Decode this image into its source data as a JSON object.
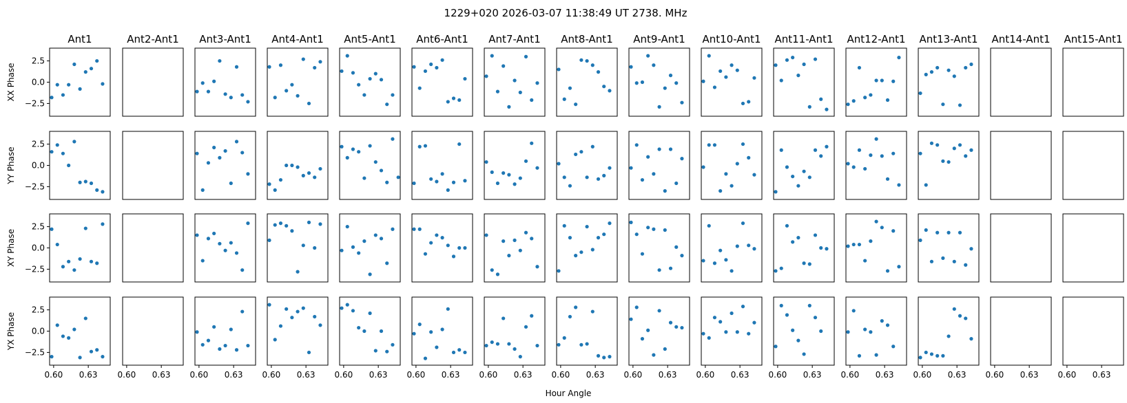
{
  "chart_data": {
    "type": "scatter",
    "title": "1229+020  2026-03-07 11:38:49 UT  2738. MHz",
    "xlabel": "Hour Angle",
    "columns": [
      "Ant1",
      "Ant2-Ant1",
      "Ant3-Ant1",
      "Ant4-Ant1",
      "Ant5-Ant1",
      "Ant6-Ant1",
      "Ant7-Ant1",
      "Ant8-Ant1",
      "Ant9-Ant1",
      "Ant10-Ant1",
      "Ant11-Ant1",
      "Ant12-Ant1",
      "Ant13-Ant1",
      "Ant14-Ant1",
      "Ant15-Ant1"
    ],
    "rows": [
      "XX Phase",
      "YY Phase",
      "XY Phase",
      "YX Phase"
    ],
    "x": [
      0.5983,
      0.6032,
      0.6081,
      0.613,
      0.6179,
      0.6228,
      0.6277,
      0.6326,
      0.6375,
      0.6424,
      0.6473
    ],
    "xlim": [
      0.5965,
      0.649
    ],
    "ylim": [
      -4.0,
      4.0
    ],
    "xticks": [
      0.6,
      0.63
    ],
    "xtick_labels": [
      "0.60",
      "0.63"
    ],
    "yticks": [
      2.5,
      0.0,
      -2.5
    ],
    "ytick_labels": [
      "2.5",
      "0.0",
      "−2.5"
    ],
    "marker_color": "#1f77b4",
    "grid": false,
    "panels": [
      [
        [
          -1.8,
          -0.3,
          -1.5,
          -0.3,
          2.1,
          -0.8,
          1.2,
          1.6,
          2.5,
          -0.2
        ],
        [],
        [
          -1.1,
          -0.1,
          -1.1,
          0.1,
          2.5,
          -1.4,
          -1.8,
          1.8,
          -1.5,
          -2.3
        ],
        [
          1.8,
          -1.8,
          2.0,
          -1.0,
          -0.3,
          -1.6,
          2.7,
          -2.5,
          1.7,
          2.4
        ],
        [
          1.3,
          3.1,
          1.1,
          -0.3,
          -1.5,
          0.4,
          1.0,
          0.3,
          -2.6,
          -1.5
        ],
        [
          1.8,
          -0.7,
          1.3,
          2.1,
          1.7,
          2.6,
          -2.3,
          -1.9,
          -2.1,
          0.4
        ],
        [
          0.7,
          3.1,
          -1.1,
          1.9,
          -2.9,
          0.2,
          -1.2,
          3.0,
          -2.1,
          -0.1
        ],
        [
          1.5,
          -2.0,
          -0.7,
          -2.6,
          2.6,
          2.5,
          2.0,
          1.2,
          -0.5,
          -1.0
        ],
        [
          1.8,
          -0.1,
          0.0,
          3.1,
          2.0,
          -2.9,
          -0.7,
          0.8,
          -0.1,
          -2.4
        ],
        [
          0.1,
          3.1,
          -0.6,
          1.3,
          0.6,
          2.0,
          1.4,
          -2.5,
          -2.3,
          0.5
        ],
        [
          2.0,
          0.2,
          2.6,
          2.9,
          0.8,
          2.1,
          -2.9,
          2.7,
          -2.0,
          -3.2
        ],
        [
          -2.6,
          -2.2,
          1.7,
          -1.8,
          -1.5,
          0.2,
          0.2,
          -2.1,
          0.1,
          2.9
        ],
        [
          -1.3,
          0.9,
          1.2,
          1.7,
          -2.6,
          1.4,
          0.7,
          -2.7,
          1.7,
          2.1
        ],
        [],
        []
      ],
      [
        [
          1.6,
          2.4,
          1.4,
          0.0,
          2.8,
          -2.0,
          -1.9,
          -2.1,
          -2.9,
          -3.1
        ],
        [],
        [
          1.4,
          -2.9,
          0.3,
          2.1,
          0.9,
          1.7,
          -2.1,
          2.8,
          1.5,
          -1.0
        ],
        [
          -2.2,
          -2.9,
          -1.7,
          0.0,
          0.0,
          -0.2,
          -1.2,
          -0.9,
          -1.4,
          -0.4
        ],
        [
          2.2,
          0.9,
          1.9,
          1.6,
          -1.5,
          2.3,
          0.4,
          -0.6,
          -2.0,
          3.1,
          -1.4
        ],
        [
          -2.1,
          2.2,
          2.3,
          -1.6,
          -1.9,
          -1.0,
          -2.9,
          -2.0,
          2.5,
          -1.8
        ],
        [
          0.4,
          -0.8,
          -2.1,
          -0.9,
          -1.1,
          -2.2,
          -1.5,
          0.5,
          2.6,
          -0.3
        ],
        [
          0.2,
          -1.4,
          -2.4,
          1.3,
          1.6,
          -1.4,
          2.2,
          -1.6,
          -1.2,
          -0.3
        ],
        [
          -0.3,
          2.4,
          -1.7,
          1.0,
          -1.0,
          1.9,
          -3.0,
          1.9,
          -2.1,
          0.8
        ],
        [
          -0.2,
          2.4,
          2.4,
          -3.0,
          -1.0,
          -2.4,
          0.2,
          2.5,
          0.9,
          -1.1
        ],
        [
          -3.1,
          1.8,
          -0.2,
          -1.3,
          -2.4,
          -0.7,
          -1.4,
          1.8,
          1.1,
          2.2
        ],
        [
          0.2,
          -0.2,
          1.8,
          -0.4,
          1.2,
          3.1,
          1.1,
          -1.6,
          1.4,
          -2.3
        ],
        [
          1.4,
          -2.3,
          2.6,
          2.4,
          0.5,
          0.4,
          2.0,
          2.4,
          1.1,
          1.8
        ],
        [],
        []
      ],
      [
        [
          2.2,
          0.4,
          -2.2,
          -1.6,
          -2.6,
          -1.3,
          2.3,
          -1.6,
          -1.8,
          2.8
        ],
        [],
        [
          1.5,
          -1.5,
          1.1,
          1.7,
          0.5,
          -0.3,
          0.6,
          -0.6,
          -2.6,
          2.9
        ],
        [
          0.9,
          2.7,
          2.9,
          2.6,
          2.0,
          -2.8,
          0.3,
          3.0,
          0.0,
          2.8
        ],
        [
          -0.3,
          2.5,
          0.1,
          -0.6,
          0.8,
          -3.1,
          1.5,
          1.1,
          -1.8,
          2.2
        ],
        [
          2.2,
          2.2,
          -0.7,
          0.6,
          1.5,
          1.2,
          0.3,
          -1.0,
          0.0,
          0.0
        ],
        [
          1.5,
          -2.6,
          -3.1,
          0.8,
          -0.9,
          0.9,
          -0.3,
          1.8,
          1.1,
          -2.2
        ],
        [
          -2.7,
          2.6,
          1.2,
          -0.9,
          -0.5,
          2.5,
          -0.2,
          1.2,
          1.6,
          2.9
        ],
        [
          3.0,
          1.6,
          -0.7,
          2.4,
          2.2,
          -2.6,
          2.1,
          -2.4,
          0.1,
          -0.9
        ],
        [
          -1.5,
          2.6,
          -1.8,
          -0.3,
          -1.4,
          -2.7,
          0.2,
          2.9,
          0.3,
          -0.1
        ],
        [
          -2.7,
          -2.4,
          2.6,
          0.7,
          1.2,
          -1.8,
          -1.9,
          1.5,
          0.0,
          -0.1
        ],
        [
          0.2,
          0.4,
          0.4,
          -1.5,
          0.8,
          3.1,
          2.4,
          -2.7,
          2.0,
          -2.2
        ],
        [
          0.9,
          2.1,
          -1.6,
          1.8,
          -1.2,
          1.8,
          -1.6,
          1.8,
          -2.0,
          -0.1
        ],
        [],
        []
      ],
      [
        [
          -3.0,
          0.7,
          -0.6,
          -0.8,
          0.2,
          -3.1,
          1.5,
          -2.4,
          -2.2,
          -3.0
        ],
        [],
        [
          -0.1,
          -1.6,
          -1.1,
          0.5,
          -2.1,
          -1.7,
          0.2,
          -2.2,
          2.3,
          -1.7
        ],
        [
          3.1,
          -1.0,
          0.6,
          2.6,
          1.6,
          2.3,
          2.7,
          -2.5,
          1.7,
          0.7
        ],
        [
          2.7,
          3.1,
          2.4,
          0.4,
          0.0,
          2.1,
          -2.3,
          0.0,
          -2.4,
          -1.6
        ],
        [
          -0.3,
          0.8,
          -3.2,
          -0.1,
          -1.9,
          0.2,
          2.6,
          -2.5,
          -2.2,
          -2.5
        ],
        [
          -1.7,
          -1.3,
          -1.5,
          1.5,
          -1.5,
          -2.1,
          -3.0,
          0.5,
          1.8,
          -1.7
        ],
        [
          -1.6,
          -0.8,
          1.7,
          2.8,
          -1.6,
          -1.5,
          2.3,
          -2.9,
          -3.1,
          -3.0
        ],
        [
          1.4,
          2.8,
          -0.9,
          0.1,
          -2.8,
          2.4,
          -2.1,
          1.0,
          0.5,
          0.4
        ],
        [
          -0.3,
          -0.8,
          1.6,
          1.1,
          -0.1,
          2.1,
          -0.1,
          2.9,
          -0.3,
          1.0
        ],
        [
          -1.8,
          3.0,
          1.9,
          0.1,
          -1.1,
          -2.7,
          3.0,
          1.6,
          0.0
        ],
        [
          -0.1,
          2.4,
          -2.9,
          0.2,
          -0.1,
          -2.8,
          1.2,
          0.7,
          -1.8
        ],
        [
          -3.1,
          -2.5,
          -2.7,
          -2.9,
          -2.9,
          -0.6,
          2.6,
          1.8,
          1.5,
          -0.9
        ],
        [],
        []
      ]
    ]
  }
}
